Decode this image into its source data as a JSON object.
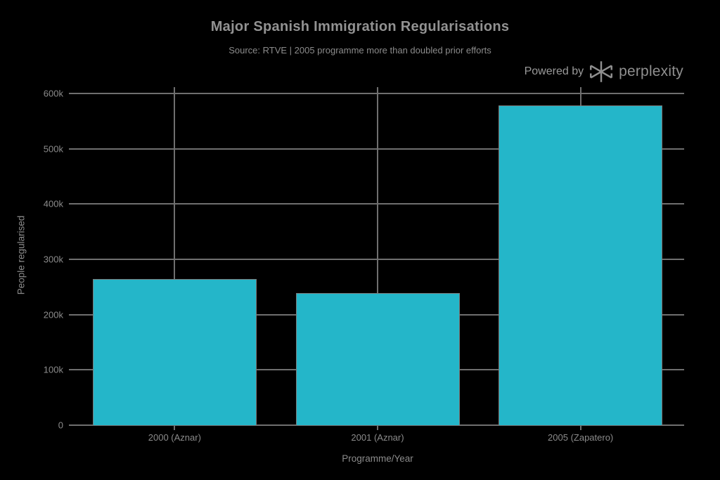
{
  "branding": {
    "powered_by": "Powered by",
    "brand": "perplexity",
    "logo_icon": "perplexity-asterisk-logo"
  },
  "chart_data": {
    "type": "bar",
    "title": "Major Spanish Immigration Regularisations",
    "subtitle": "Source: RTVE | 2005 programme more than doubled prior efforts",
    "categories": [
      "2000 (Aznar)",
      "2001 (Aznar)",
      "2005 (Zapatero)"
    ],
    "values": [
      264000,
      239000,
      578000
    ],
    "xlabel": "Programme/Year",
    "ylabel": "People regularised",
    "ylim": [
      0,
      615000
    ],
    "yticks": [
      {
        "value": 0,
        "label": "0"
      },
      {
        "value": 100000,
        "label": "100k"
      },
      {
        "value": 200000,
        "label": "200k"
      },
      {
        "value": 300000,
        "label": "300k"
      },
      {
        "value": 400000,
        "label": "400k"
      },
      {
        "value": 500000,
        "label": "500k"
      },
      {
        "value": 600000,
        "label": "600k"
      }
    ],
    "grid": true,
    "legend": false,
    "colors": {
      "background": "#000000",
      "bar": "#24b6c9",
      "bar_border": "#7a7a7a",
      "grid": "#6f6f6f",
      "text": "#8b8b8b",
      "title_text": "#929292"
    }
  }
}
